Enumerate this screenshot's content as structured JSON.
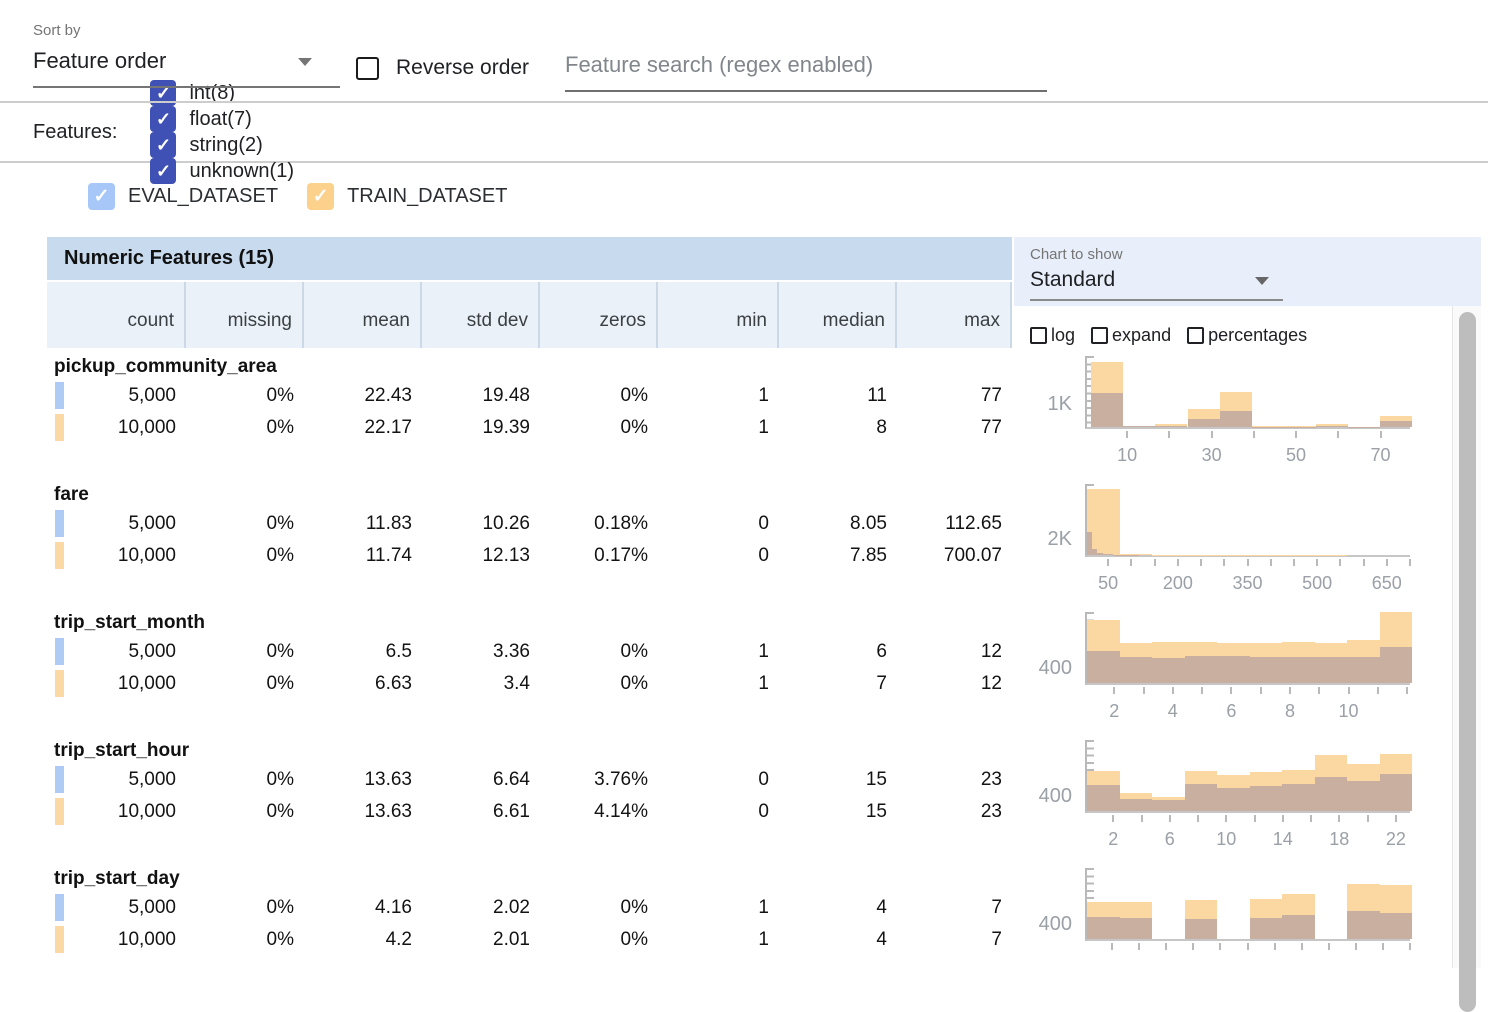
{
  "toolbar": {
    "sort_by_label": "Sort by",
    "sort_by_value": "Feature order",
    "reverse_order_label": "Reverse order",
    "reverse_order_checked": false,
    "search_placeholder": "Feature search (regex enabled)"
  },
  "filters": {
    "label": "Features:",
    "items": [
      {
        "label": "int(8)",
        "checked": true
      },
      {
        "label": "float(7)",
        "checked": true
      },
      {
        "label": "string(2)",
        "checked": true
      },
      {
        "label": "unknown(1)",
        "checked": true
      }
    ]
  },
  "datasets": [
    {
      "name": "EVAL_DATASET",
      "checked": true,
      "color": "#a6c7f8"
    },
    {
      "name": "TRAIN_DATASET",
      "checked": true,
      "color": "#fcd18c"
    }
  ],
  "table": {
    "title": "Numeric Features (15)",
    "columns": [
      "count",
      "missing",
      "mean",
      "std dev",
      "zeros",
      "min",
      "median",
      "max"
    ],
    "features": [
      {
        "name": "pickup_community_area",
        "rows": [
          [
            "5,000",
            "0%",
            "22.43",
            "19.48",
            "0%",
            "1",
            "11",
            "77"
          ],
          [
            "10,000",
            "0%",
            "22.17",
            "19.39",
            "0%",
            "1",
            "8",
            "77"
          ]
        ]
      },
      {
        "name": "fare",
        "rows": [
          [
            "5,000",
            "0%",
            "11.83",
            "10.26",
            "0.18%",
            "0",
            "8.05",
            "112.65"
          ],
          [
            "10,000",
            "0%",
            "11.74",
            "12.13",
            "0.17%",
            "0",
            "7.85",
            "700.07"
          ]
        ]
      },
      {
        "name": "trip_start_month",
        "rows": [
          [
            "5,000",
            "0%",
            "6.5",
            "3.36",
            "0%",
            "1",
            "6",
            "12"
          ],
          [
            "10,000",
            "0%",
            "6.63",
            "3.4",
            "0%",
            "1",
            "7",
            "12"
          ]
        ]
      },
      {
        "name": "trip_start_hour",
        "rows": [
          [
            "5,000",
            "0%",
            "13.63",
            "6.64",
            "3.76%",
            "0",
            "15",
            "23"
          ],
          [
            "10,000",
            "0%",
            "13.63",
            "6.61",
            "4.14%",
            "0",
            "15",
            "23"
          ]
        ]
      },
      {
        "name": "trip_start_day",
        "rows": [
          [
            "5,000",
            "0%",
            "4.16",
            "2.02",
            "0%",
            "1",
            "4",
            "7"
          ],
          [
            "10,000",
            "0%",
            "4.2",
            "2.01",
            "0%",
            "1",
            "4",
            "7"
          ]
        ]
      }
    ]
  },
  "chart_panel": {
    "label": "Chart to show",
    "selected": "Standard",
    "options": [
      {
        "label": "log",
        "checked": false
      },
      {
        "label": "expand",
        "checked": false
      },
      {
        "label": "percentages",
        "checked": false
      }
    ]
  },
  "chart_data": [
    {
      "type": "bar",
      "feature": "pickup_community_area",
      "x_domain": [
        0,
        77
      ],
      "y_max": 2900,
      "y_tick": {
        "label": "1K",
        "value": 1000
      },
      "x_ticks": {
        "values": [
          10,
          20,
          30,
          40,
          50,
          60,
          70
        ],
        "labeled": [
          10,
          30,
          50,
          70
        ]
      },
      "series": [
        {
          "name": "TRAIN_DATASET",
          "role": "train",
          "bins": [
            [
              1,
              8.6,
              2600
            ],
            [
              8.6,
              16.2,
              60
            ],
            [
              16.2,
              23.8,
              110
            ],
            [
              23.8,
              31.4,
              700
            ],
            [
              31.4,
              39,
              1400
            ],
            [
              39,
              46.6,
              25
            ],
            [
              46.6,
              54.2,
              25
            ],
            [
              54.2,
              61.8,
              110
            ],
            [
              61.8,
              69.4,
              20
            ],
            [
              69.4,
              77,
              420
            ]
          ]
        },
        {
          "name": "EVAL_DATASET",
          "role": "eval",
          "bins": [
            [
              1,
              8.6,
              1360
            ],
            [
              8.6,
              16.2,
              25
            ],
            [
              16.2,
              23.8,
              40
            ],
            [
              23.8,
              31.4,
              330
            ],
            [
              31.4,
              39,
              640
            ],
            [
              39,
              46.6,
              10
            ],
            [
              46.6,
              54.2,
              10
            ],
            [
              54.2,
              61.8,
              35
            ],
            [
              61.8,
              69.4,
              10
            ],
            [
              69.4,
              77,
              230
            ]
          ]
        }
      ]
    },
    {
      "type": "bar",
      "feature": "fare",
      "x_domain": [
        0,
        700
      ],
      "y_max": 8000,
      "y_tick": {
        "label": "2K",
        "value": 2000
      },
      "x_ticks": {
        "values": [
          50,
          100,
          150,
          200,
          250,
          300,
          350,
          400,
          450,
          500,
          550,
          600,
          650,
          700
        ],
        "labeled": [
          50,
          200,
          350,
          500,
          650
        ]
      },
      "series": [
        {
          "name": "TRAIN_DATASET",
          "role": "train",
          "bins": [
            [
              0,
              70,
              7200
            ],
            [
              70,
              140,
              120
            ],
            [
              140,
              210,
              40
            ],
            [
              210,
              280,
              20
            ],
            [
              280,
              350,
              15
            ],
            [
              350,
              420,
              10
            ],
            [
              420,
              490,
              8
            ],
            [
              490,
              560,
              6
            ],
            [
              560,
              630,
              5
            ],
            [
              630,
              700,
              5
            ]
          ]
        },
        {
          "name": "EVAL_DATASET",
          "role": "eval",
          "bins": [
            [
              0,
              11.3,
              2480
            ],
            [
              11.3,
              22.5,
              700
            ],
            [
              22.5,
              33.8,
              260
            ],
            [
              33.8,
              45.1,
              130
            ],
            [
              45.1,
              56.3,
              70
            ],
            [
              56.3,
              67.6,
              40
            ],
            [
              67.6,
              78.9,
              25
            ],
            [
              78.9,
              90.1,
              15
            ],
            [
              90.1,
              101.4,
              10
            ],
            [
              101.4,
              112.7,
              8
            ]
          ]
        }
      ]
    },
    {
      "type": "bar",
      "feature": "trip_start_month",
      "x_domain": [
        1,
        12.1
      ],
      "y_max": 1700,
      "y_tick": {
        "label": "400",
        "value": 400
      },
      "x_ticks": {
        "values": [
          2,
          3,
          4,
          5,
          6,
          7,
          8,
          9,
          10,
          11,
          12
        ],
        "labeled": [
          2,
          4,
          6,
          8,
          10
        ]
      },
      "series": [
        {
          "name": "TRAIN_DATASET",
          "role": "train",
          "bins": [
            [
              1,
              2.11,
              1470
            ],
            [
              2.11,
              3.22,
              930
            ],
            [
              3.22,
              4.33,
              950
            ],
            [
              4.33,
              5.44,
              960
            ],
            [
              5.44,
              6.55,
              940
            ],
            [
              6.55,
              7.66,
              940
            ],
            [
              7.66,
              8.77,
              960
            ],
            [
              8.77,
              9.88,
              930
            ],
            [
              9.88,
              10.99,
              1010
            ],
            [
              10.99,
              12.1,
              1650
            ]
          ]
        },
        {
          "name": "EVAL_DATASET",
          "role": "eval",
          "bins": [
            [
              1,
              2.11,
              740
            ],
            [
              2.11,
              3.22,
              600
            ],
            [
              3.22,
              4.33,
              590
            ],
            [
              4.33,
              5.44,
              620
            ],
            [
              5.44,
              6.55,
              630
            ],
            [
              6.55,
              7.66,
              600
            ],
            [
              7.66,
              8.77,
              600
            ],
            [
              8.77,
              9.88,
              610
            ],
            [
              9.88,
              10.99,
              610
            ],
            [
              10.99,
              12.1,
              830
            ]
          ]
        }
      ]
    },
    {
      "type": "bar",
      "feature": "trip_start_hour",
      "x_domain": [
        0,
        23
      ],
      "y_max": 1700,
      "y_tick": {
        "label": "400",
        "value": 400
      },
      "x_ticks": {
        "values": [
          2,
          4,
          6,
          8,
          10,
          12,
          14,
          16,
          18,
          20,
          22
        ],
        "labeled": [
          2,
          6,
          10,
          14,
          18,
          22
        ]
      },
      "series": [
        {
          "name": "TRAIN_DATASET",
          "role": "train",
          "bins": [
            [
              0,
              2.3,
              930
            ],
            [
              2.3,
              4.6,
              420
            ],
            [
              4.6,
              6.9,
              330
            ],
            [
              6.9,
              9.2,
              930
            ],
            [
              9.2,
              11.5,
              840
            ],
            [
              11.5,
              13.8,
              910
            ],
            [
              13.8,
              16.1,
              960
            ],
            [
              16.1,
              18.4,
              1300
            ],
            [
              18.4,
              20.7,
              1100
            ],
            [
              20.7,
              23,
              1330
            ]
          ]
        },
        {
          "name": "EVAL_DATASET",
          "role": "eval",
          "bins": [
            [
              0,
              2.3,
              610
            ],
            [
              2.3,
              4.6,
              280
            ],
            [
              4.6,
              6.9,
              260
            ],
            [
              6.9,
              9.2,
              630
            ],
            [
              9.2,
              11.5,
              540
            ],
            [
              11.5,
              13.8,
              580
            ],
            [
              13.8,
              16.1,
              630
            ],
            [
              16.1,
              18.4,
              790
            ],
            [
              18.4,
              20.7,
              700
            ],
            [
              20.7,
              23,
              860
            ]
          ]
        }
      ]
    },
    {
      "type": "bar",
      "feature": "trip_start_day",
      "x_domain": [
        1,
        7
      ],
      "y_max": 1700,
      "y_tick": {
        "label": "400",
        "value": 400
      },
      "x_ticks": {
        "values": [
          1.5,
          2,
          2.5,
          3,
          3.5,
          4,
          4.5,
          5,
          5.5,
          6,
          6.5,
          7
        ],
        "labeled": []
      },
      "series": [
        {
          "name": "TRAIN_DATASET",
          "role": "train",
          "bins": [
            [
              1,
              1.6,
              860
            ],
            [
              1.6,
              2.2,
              860
            ],
            [
              2.2,
              2.8,
              0
            ],
            [
              2.8,
              3.4,
              910
            ],
            [
              3.4,
              4,
              0
            ],
            [
              4,
              4.6,
              930
            ],
            [
              4.6,
              5.2,
              1050
            ],
            [
              5.2,
              5.8,
              0
            ],
            [
              5.8,
              6.4,
              1280
            ],
            [
              6.4,
              7,
              1260
            ]
          ]
        },
        {
          "name": "EVAL_DATASET",
          "role": "eval",
          "bins": [
            [
              1,
              1.6,
              510
            ],
            [
              1.6,
              2.2,
              490
            ],
            [
              2.2,
              2.8,
              0
            ],
            [
              2.8,
              3.4,
              470
            ],
            [
              3.4,
              4,
              0
            ],
            [
              4,
              4.6,
              490
            ],
            [
              4.6,
              5.2,
              560
            ],
            [
              5.2,
              5.8,
              0
            ],
            [
              5.8,
              6.4,
              650
            ],
            [
              6.4,
              7,
              610
            ]
          ]
        }
      ]
    }
  ],
  "colors": {
    "accent": "#3f51b5",
    "eval-chip": "#aecaf5",
    "train-chip": "#fbd9a4",
    "train-bar": "#fbd7a2",
    "overlap-bar": "#c8afa0",
    "title-bg": "#c7daee",
    "colhead-bg": "#eaf1f9",
    "panel-bg": "#e8effa"
  },
  "glyphs": {
    "check": "✓"
  }
}
